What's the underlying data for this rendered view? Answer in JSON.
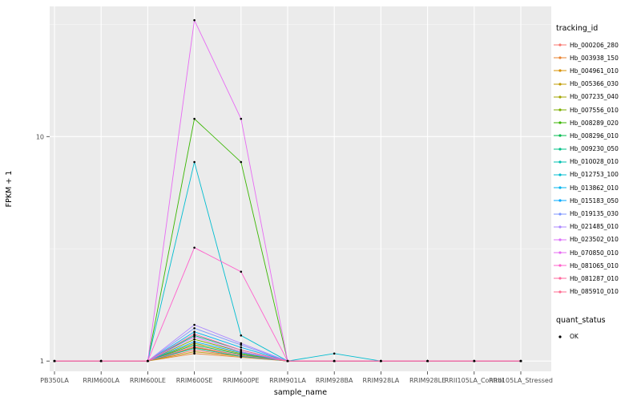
{
  "chart_data": {
    "type": "line",
    "title": "",
    "xlabel": "sample_name",
    "ylabel": "FPKM + 1",
    "y_scale": "log10",
    "y_ticks": [
      1,
      10
    ],
    "ylim": [
      0.9,
      38
    ],
    "grid": true,
    "legend_position": "right",
    "panel_bg": "#EBEBEB",
    "grid_color": "#FFFFFF",
    "point_color": "#000000",
    "categories": [
      "PB350LA",
      "RRIM600LA",
      "RRIM600LE",
      "RRIM600SE",
      "RRIM600PE",
      "RRIM901LA",
      "RRIM928BA",
      "RRIM928LA",
      "RRIM928LE",
      "RRII105LA_Control",
      "RRII105LA_Stressed"
    ],
    "color_legend_title": "tracking_id",
    "shape_legend_title": "quant_status",
    "shape_legend_items": [
      {
        "label": "OK",
        "shape": "point",
        "color": "#000000"
      }
    ],
    "series": [
      {
        "name": "Hb_000206_280",
        "color": "#F8766D",
        "values": [
          1,
          1,
          1,
          1.12,
          1.05,
          1,
          1,
          1,
          1,
          1,
          1
        ]
      },
      {
        "name": "Hb_003938_150",
        "color": "#EA8331",
        "values": [
          1,
          1,
          1,
          1.08,
          1.04,
          1,
          1,
          1,
          1,
          1,
          1
        ]
      },
      {
        "name": "Hb_004961_010",
        "color": "#D89000",
        "values": [
          1,
          1,
          1,
          1.15,
          1.06,
          1,
          1,
          1,
          1,
          1,
          1
        ]
      },
      {
        "name": "Hb_005366_030",
        "color": "#C09B00",
        "values": [
          1,
          1,
          1,
          1.1,
          1.05,
          1,
          1,
          1,
          1,
          1,
          1
        ]
      },
      {
        "name": "Hb_007235_040",
        "color": "#A3A500",
        "values": [
          1,
          1,
          1,
          1.2,
          1.08,
          1,
          1,
          1,
          1,
          1,
          1
        ]
      },
      {
        "name": "Hb_007556_010",
        "color": "#7CAE00",
        "values": [
          1,
          1,
          1,
          1.25,
          1.1,
          1,
          1,
          1,
          1,
          1,
          1
        ]
      },
      {
        "name": "Hb_008289_020",
        "color": "#39B600",
        "values": [
          1,
          1,
          1,
          12,
          7.7,
          1,
          1,
          1,
          1,
          1,
          1
        ]
      },
      {
        "name": "Hb_008296_010",
        "color": "#00BB4E",
        "values": [
          1,
          1,
          1,
          1.18,
          1.07,
          1,
          1,
          1,
          1,
          1,
          1
        ]
      },
      {
        "name": "Hb_009230_050",
        "color": "#00C087",
        "values": [
          1,
          1,
          1,
          1.3,
          1.12,
          1,
          1,
          1,
          1,
          1,
          1
        ]
      },
      {
        "name": "Hb_010028_010",
        "color": "#00C0B2",
        "values": [
          1,
          1,
          1,
          1.14,
          1.05,
          1,
          1,
          1,
          1,
          1,
          1
        ]
      },
      {
        "name": "Hb_012753_100",
        "color": "#00BDD0",
        "values": [
          1,
          1,
          1,
          7.7,
          1.3,
          1,
          1.08,
          1,
          1,
          1,
          1
        ]
      },
      {
        "name": "Hb_013862_010",
        "color": "#00B4EF",
        "values": [
          1,
          1,
          1,
          1.35,
          1.15,
          1,
          1,
          1,
          1,
          1,
          1
        ]
      },
      {
        "name": "Hb_015183_050",
        "color": "#00A9FF",
        "values": [
          1,
          1,
          1,
          1.22,
          1.09,
          1,
          1,
          1,
          1,
          1,
          1
        ]
      },
      {
        "name": "Hb_019135_030",
        "color": "#7C96FF",
        "values": [
          1,
          1,
          1,
          1.4,
          1.18,
          1,
          1,
          1,
          1,
          1,
          1
        ]
      },
      {
        "name": "Hb_021485_010",
        "color": "#AC88FF",
        "values": [
          1,
          1,
          1,
          1.45,
          1.2,
          1,
          1,
          1,
          1,
          1,
          1
        ]
      },
      {
        "name": "Hb_023502_010",
        "color": "#DC71FA",
        "values": [
          1,
          1,
          1,
          1.28,
          1.1,
          1,
          1,
          1,
          1,
          1,
          1
        ]
      },
      {
        "name": "Hb_070850_010",
        "color": "#E76BF3",
        "values": [
          1,
          1,
          1,
          33,
          12,
          1,
          1,
          1,
          1,
          1,
          1
        ]
      },
      {
        "name": "Hb_081065_010",
        "color": "#FF61CC",
        "values": [
          1,
          1,
          1,
          3.2,
          2.5,
          1,
          1,
          1,
          1,
          1,
          1
        ]
      },
      {
        "name": "Hb_081287_010",
        "color": "#FF689E",
        "values": [
          1,
          1,
          1,
          1.32,
          1.12,
          1,
          1,
          1,
          1,
          1,
          1
        ]
      },
      {
        "name": "Hb_085910_010",
        "color": "#FF6C91",
        "values": [
          1,
          1,
          1,
          1.16,
          1.06,
          1,
          1,
          1,
          1,
          1,
          1
        ]
      }
    ]
  }
}
